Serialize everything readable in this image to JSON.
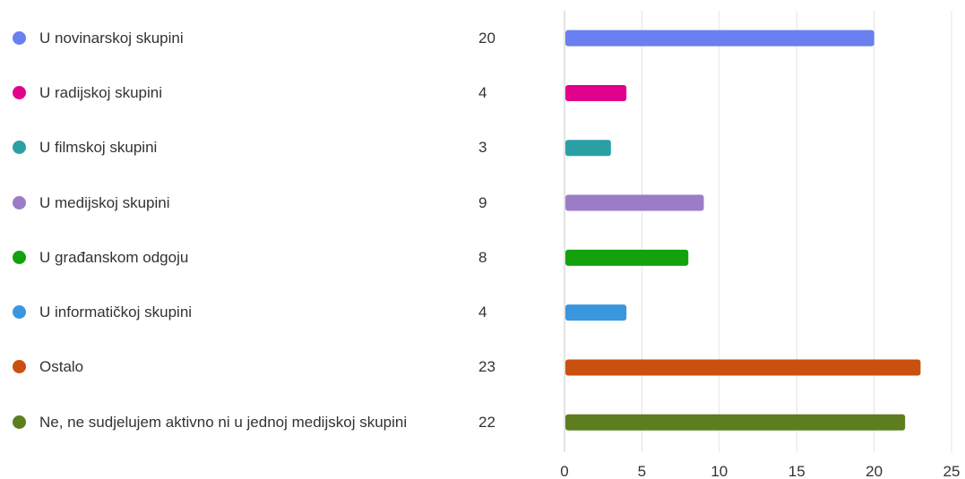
{
  "chart_data": {
    "type": "bar",
    "orientation": "horizontal",
    "categories": [
      "U novinarskoj skupini",
      "U radijskoj skupini",
      "U filmskoj skupini",
      "U medijskoj skupini",
      "U građanskom odgoju",
      "U informatičkoj skupini",
      "Ostalo",
      "Ne, ne sudjelujem aktivno ni u jednoj medijskoj skupini"
    ],
    "values": [
      20,
      4,
      3,
      9,
      8,
      4,
      23,
      22
    ],
    "colors": [
      "#6a7ff0",
      "#e3008c",
      "#2aa0a4",
      "#9b7cc7",
      "#13a10e",
      "#3a96dd",
      "#ca5010",
      "#5c7e1f"
    ],
    "xlim": [
      0,
      25
    ],
    "xticks": [
      0,
      5,
      10,
      15,
      20,
      25
    ],
    "grid": true,
    "legend": "left"
  }
}
